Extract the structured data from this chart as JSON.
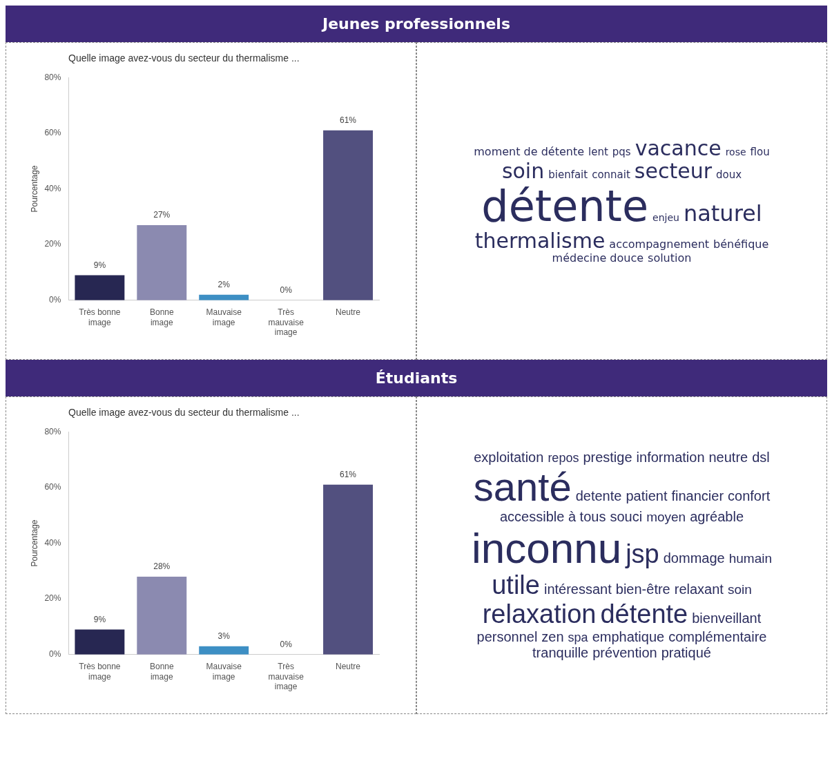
{
  "chart_data": [
    {
      "type": "bar",
      "title": "Jeunes professionnels",
      "subtitle": "Quelle image avez-vous du secteur du thermalisme ...",
      "ylabel": "Pourcentage",
      "categories": [
        "Très bonne image",
        "Bonne image",
        "Mauvaise image",
        "Très mauvaise image",
        "Neutre"
      ],
      "values": [
        9,
        27,
        2,
        0,
        61
      ],
      "colors": [
        "#272752",
        "#8b8ab0",
        "#3d8fc4",
        "#8b8ab0",
        "#52507f"
      ],
      "value_labels": [
        "9%",
        "27%",
        "2%",
        "0%",
        "61%"
      ],
      "ylim": [
        0,
        80
      ],
      "yticks": [
        {
          "value": 0,
          "label": "0%"
        },
        {
          "value": 20,
          "label": "20%"
        },
        {
          "value": 40,
          "label": "40%"
        },
        {
          "value": 60,
          "label": "60%"
        },
        {
          "value": 80,
          "label": "80%"
        }
      ],
      "grid": false
    },
    {
      "type": "other",
      "annotations": [
        "moment de détente",
        "lent",
        "pqs",
        "vacance",
        "rose",
        "flou",
        "soin",
        "bienfait",
        "connait",
        "secteur",
        "doux",
        "détente",
        "enjeu",
        "naturel",
        "thermalisme",
        "accompagnement",
        "bénéfique",
        "médecine douce",
        "solution"
      ]
    },
    {
      "type": "bar",
      "title": "Étudiants",
      "subtitle": "Quelle image avez-vous du secteur du thermalisme ...",
      "ylabel": "Pourcentage",
      "categories": [
        "Très bonne image",
        "Bonne image",
        "Mauvaise image",
        "Très mauvaise image",
        "Neutre"
      ],
      "values": [
        9,
        28,
        3,
        0,
        61
      ],
      "colors": [
        "#272752",
        "#8b8ab0",
        "#3d8fc4",
        "#8b8ab0",
        "#52507f"
      ],
      "value_labels": [
        "9%",
        "28%",
        "3%",
        "0%",
        "61%"
      ],
      "ylim": [
        0,
        80
      ],
      "yticks": [
        {
          "value": 0,
          "label": "0%"
        },
        {
          "value": 20,
          "label": "20%"
        },
        {
          "value": 40,
          "label": "40%"
        },
        {
          "value": 60,
          "label": "60%"
        },
        {
          "value": 80,
          "label": "80%"
        }
      ],
      "grid": false
    },
    {
      "type": "other",
      "annotations": [
        "exploitation",
        "repos",
        "prestige",
        "information",
        "neutre",
        "dsl",
        "santé",
        "detente",
        "patient",
        "financier",
        "confort",
        "accessible à tous",
        "souci",
        "moyen",
        "agréable",
        "inconnu",
        "jsp",
        "dommage",
        "humain",
        "utile",
        "intéressant",
        "bien-être",
        "relaxant",
        "soin",
        "relaxation",
        "détente",
        "bienveillant",
        "personnel",
        "zen",
        "spa",
        "emphatique",
        "complémentaire",
        "tranquille",
        "prévention",
        "pratiqué"
      ]
    }
  ]
}
